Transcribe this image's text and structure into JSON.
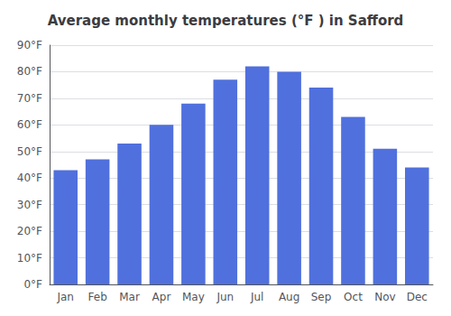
{
  "chart_data": {
    "type": "bar",
    "title": "Average monthly temperatures (°F ) in Safford",
    "categories": [
      "Jan",
      "Feb",
      "Mar",
      "Apr",
      "May",
      "Jun",
      "Jul",
      "Aug",
      "Sep",
      "Oct",
      "Nov",
      "Dec"
    ],
    "values": [
      43,
      47,
      53,
      60,
      68,
      77,
      82,
      80,
      74,
      63,
      51,
      44
    ],
    "ylim": [
      0,
      90
    ],
    "yticks": [
      {
        "value": 0,
        "label": "0°F"
      },
      {
        "value": 10,
        "label": "10°F"
      },
      {
        "value": 20,
        "label": "20°F"
      },
      {
        "value": 30,
        "label": "30°F"
      },
      {
        "value": 40,
        "label": "40°F"
      },
      {
        "value": 50,
        "label": "50°F"
      },
      {
        "value": 60,
        "label": "60°F"
      },
      {
        "value": 70,
        "label": "70°F"
      },
      {
        "value": 80,
        "label": "80°F"
      },
      {
        "value": 90,
        "label": "90°F"
      }
    ],
    "grid": true
  }
}
